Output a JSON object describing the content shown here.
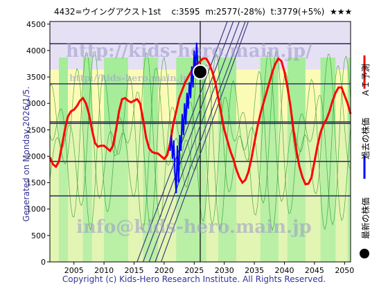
{
  "header": {
    "ticker_name": "4432=ウイングアクスト1st",
    "current": "c:3595",
    "min": "m:2577(-28%)",
    "target": "t:3779(+5%)",
    "stars": "★★★"
  },
  "generated_text": "Generated on Monday 2026/1/5.",
  "footer": "Copyright (c) Kids-Hero Research Institute. All Rights Reserved.",
  "watermarks": [
    "http://kids-hero.main.jp/",
    "http://kids-hero.main.jp/",
    "info@kids-hero.main.jp"
  ],
  "legend": {
    "ai_forecast": "ＡＩ予測",
    "past_price": "過去の株価",
    "latest_price": "最新の株価"
  },
  "colors": {
    "ai": "#ff0000",
    "past": "#0000ff",
    "latest": "#000000",
    "band_green": "#99ee88",
    "band_yellow": "#ffffaa",
    "bg_purple": "#e6e0f4",
    "hline": "#333366"
  },
  "chart_data": {
    "type": "line",
    "x_ticks": [
      "2005",
      "2010",
      "2015",
      "2020",
      "2025",
      "2030",
      "2035",
      "2040",
      "2045",
      "2050"
    ],
    "y_ticks": [
      "0",
      "500",
      "1000",
      "1500",
      "2000",
      "2500",
      "3000",
      "3500",
      "4000",
      "4500"
    ],
    "xlim": [
      2001,
      2051
    ],
    "ylim": [
      0,
      4550
    ],
    "horizontal_levels": [
      1250,
      1900,
      2620,
      2650,
      3370,
      4130
    ],
    "vertical_marker_x": 2026,
    "latest_point": {
      "x": 2026.0,
      "y": 3595
    },
    "series": [
      {
        "name": "ＡＩ予測",
        "x": [
          2001,
          2001.5,
          2002,
          2002.5,
          2003,
          2003.5,
          2004,
          2004.5,
          2005,
          2005.5,
          2006,
          2006.5,
          2007,
          2007.5,
          2008,
          2008.5,
          2009,
          2009.5,
          2010,
          2010.5,
          2011,
          2011.5,
          2012,
          2012.5,
          2013,
          2013.5,
          2014,
          2014.5,
          2015,
          2015.5,
          2016,
          2016.5,
          2017,
          2017.5,
          2018,
          2018.5,
          2019,
          2019.5,
          2020,
          2020.5,
          2021,
          2021.5,
          2022,
          2022.5,
          2023,
          2023.5,
          2024,
          2024.5,
          2025,
          2025.5,
          2026,
          2026.5,
          2027,
          2027.5,
          2028,
          2028.5,
          2029,
          2029.5,
          2030,
          2030.5,
          2031,
          2031.5,
          2032,
          2032.5,
          2033,
          2033.5,
          2034,
          2034.5,
          2035,
          2035.5,
          2036,
          2036.5,
          2037,
          2037.5,
          2038,
          2038.5,
          2039,
          2039.5,
          2040,
          2040.5,
          2041,
          2041.5,
          2042,
          2042.5,
          2043,
          2043.5,
          2044,
          2044.5,
          2045,
          2045.5,
          2046,
          2046.5,
          2047,
          2047.5,
          2048,
          2048.5,
          2049,
          2049.5,
          2050,
          2050.5,
          2051
        ],
        "values": [
          1980,
          1850,
          1800,
          1900,
          2200,
          2500,
          2750,
          2850,
          2880,
          2950,
          3050,
          3100,
          3000,
          2800,
          2500,
          2250,
          2180,
          2200,
          2200,
          2150,
          2100,
          2200,
          2500,
          2850,
          3080,
          3100,
          3050,
          3020,
          3050,
          3080,
          3000,
          2700,
          2350,
          2150,
          2080,
          2060,
          2050,
          2000,
          1950,
          2020,
          2250,
          2600,
          2850,
          3100,
          3250,
          3400,
          3500,
          3600,
          3700,
          3750,
          3800,
          3850,
          3850,
          3750,
          3600,
          3400,
          3100,
          2800,
          2500,
          2300,
          2100,
          1950,
          1750,
          1600,
          1500,
          1550,
          1700,
          1950,
          2250,
          2550,
          2800,
          3000,
          3200,
          3400,
          3600,
          3750,
          3850,
          3800,
          3600,
          3300,
          2950,
          2500,
          2100,
          1800,
          1600,
          1470,
          1480,
          1600,
          1900,
          2200,
          2450,
          2600,
          2700,
          2850,
          3050,
          3200,
          3300,
          3300,
          3150,
          3000,
          2800
        ]
      },
      {
        "name": "過去の株価",
        "x": [
          2021.0,
          2021.2,
          2021.4,
          2021.6,
          2021.8,
          2022.0,
          2022.2,
          2022.4,
          2022.6,
          2022.8,
          2023.0,
          2023.2,
          2023.4,
          2023.6,
          2023.8,
          2024.0,
          2024.2,
          2024.4,
          2024.6,
          2024.8,
          2025.0,
          2025.2,
          2025.4,
          2025.6,
          2025.8,
          2026.0
        ],
        "values": [
          2100,
          2400,
          1950,
          2300,
          1700,
          1300,
          2200,
          1500,
          2400,
          2100,
          2800,
          2400,
          3000,
          2600,
          3200,
          2900,
          3400,
          3100,
          3700,
          3300,
          4000,
          3600,
          4150,
          3700,
          3500,
          3595
        ]
      }
    ]
  }
}
